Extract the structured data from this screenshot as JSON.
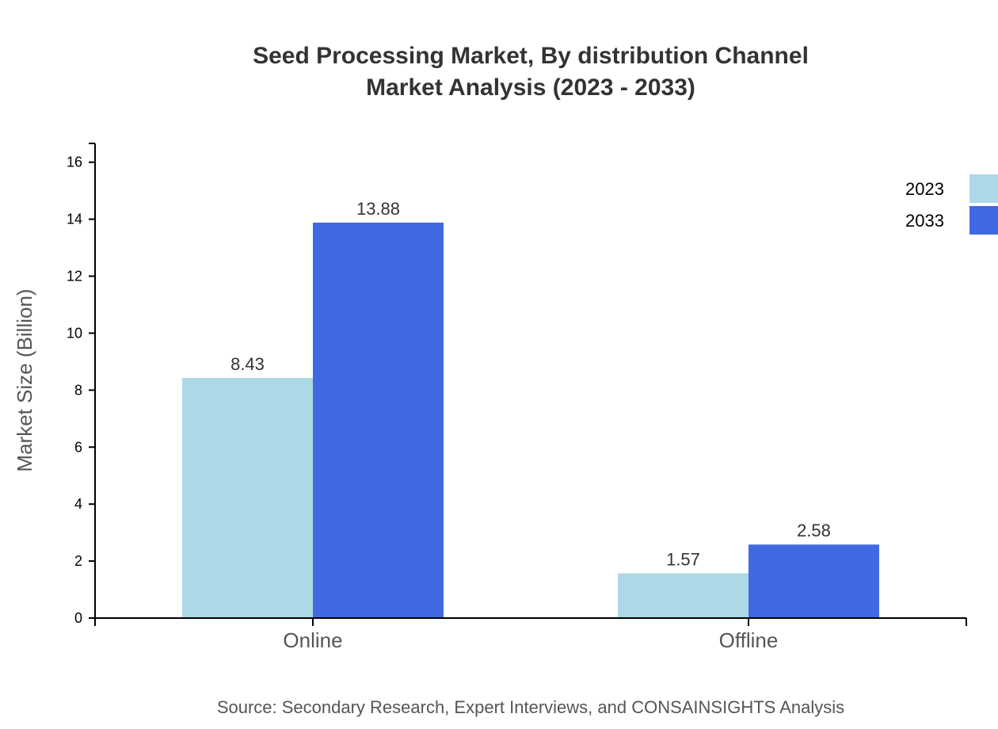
{
  "chart_data": {
    "type": "bar",
    "title_lines": [
      "Seed Processing Market, By distribution Channel",
      "Market Analysis (2023 - 2033)"
    ],
    "xlabel": "",
    "ylabel": "Market Size (Billion)",
    "categories": [
      "Online",
      "Offline"
    ],
    "series": [
      {
        "name": "2023",
        "values": [
          8.43,
          1.57
        ],
        "color": "#ADD8E6"
      },
      {
        "name": "2033",
        "values": [
          13.88,
          2.58
        ],
        "color": "#4169E1"
      }
    ],
    "ylim": [
      0,
      16.66
    ],
    "yticks": [
      0,
      2,
      4,
      6,
      8,
      10,
      12,
      14,
      16
    ],
    "grid": false,
    "legend_position": "top-right",
    "source": "Source: Secondary Research, Expert Interviews, and CONSAINSIGHTS Analysis"
  }
}
